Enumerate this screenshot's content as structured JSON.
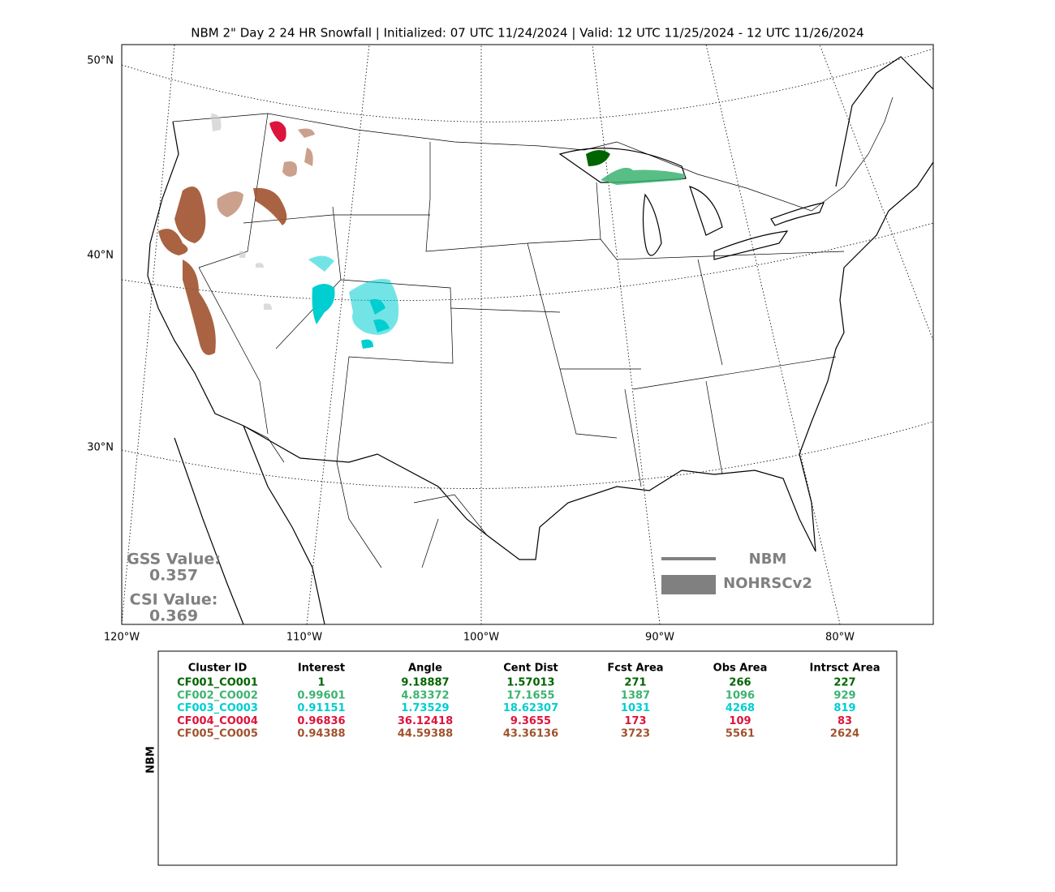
{
  "title": "NBM 2\" Day 2 24 HR Snowfall | Initialized: 07 UTC 11/24/2024 | Valid: 12 UTC 11/25/2024 - 12 UTC 11/26/2024",
  "map": {
    "lat_labels": [
      "50°N",
      "40°N",
      "30°N"
    ],
    "lon_labels": [
      "120°W",
      "110°W",
      "100°W",
      "90°W",
      "80°W"
    ],
    "stats": {
      "gss_label": "GSS Value:",
      "gss_value": "0.357",
      "csi_label": "CSI Value:",
      "csi_value": "0.369"
    },
    "legend": [
      "NBM",
      "NOHRSCv2"
    ]
  },
  "table": {
    "side_label": "NBM",
    "columns": [
      "Cluster ID",
      "Interest",
      "Angle",
      "Cent Dist",
      "Fcst Area",
      "Obs Area",
      "Intrsct Area"
    ],
    "rows": [
      {
        "color": "#006400",
        "cells": [
          "CF001_CO001",
          "1",
          "9.18887",
          "1.57013",
          "271",
          "266",
          "227"
        ]
      },
      {
        "color": "#3cb371",
        "cells": [
          "CF002_CO002",
          "0.99601",
          "4.83372",
          "17.1655",
          "1387",
          "1096",
          "929"
        ]
      },
      {
        "color": "#00ced1",
        "cells": [
          "CF003_CO003",
          "0.91151",
          "1.73529",
          "18.62307",
          "1031",
          "4268",
          "819"
        ]
      },
      {
        "color": "#dc143c",
        "cells": [
          "CF004_CO004",
          "0.96836",
          "36.12418",
          "9.3655",
          "173",
          "109",
          "83"
        ]
      },
      {
        "color": "#a0522d",
        "cells": [
          "CF005_CO005",
          "0.94388",
          "44.59388",
          "43.36136",
          "3723",
          "5561",
          "2624"
        ]
      }
    ]
  }
}
